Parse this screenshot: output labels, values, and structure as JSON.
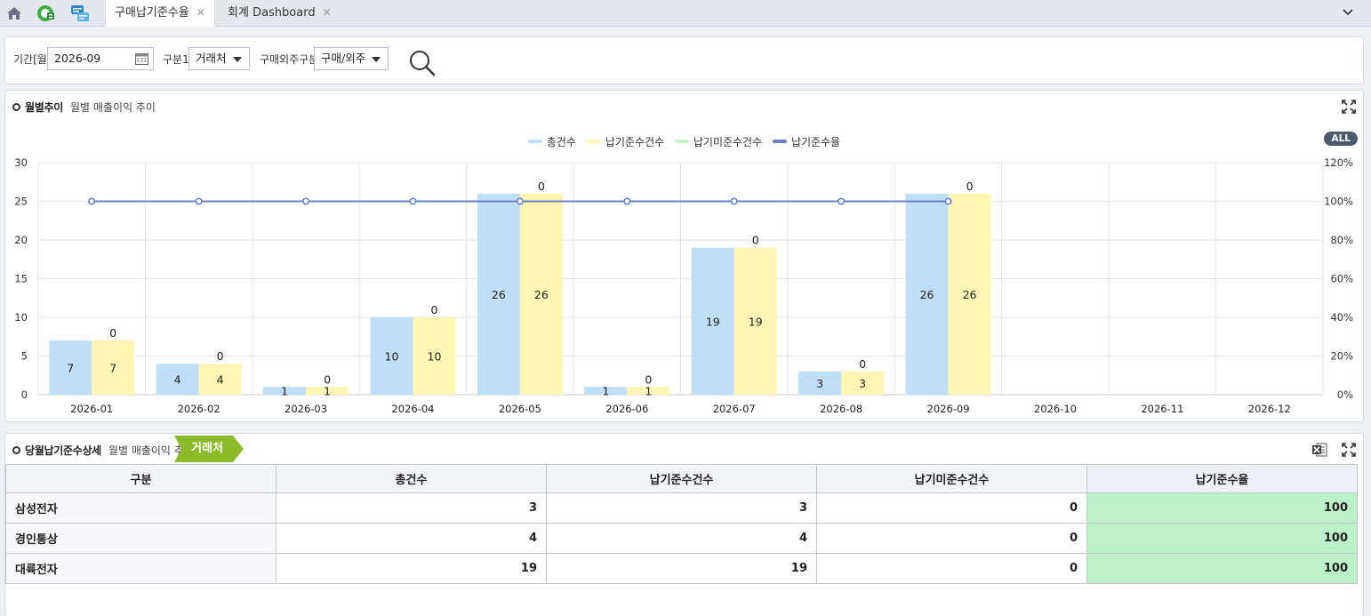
{
  "topbar": {
    "tabs": [
      {
        "label": "구매납기준수율",
        "close": "✕"
      },
      {
        "label": "회계 Dashboard",
        "close": "✕"
      }
    ]
  },
  "filters": {
    "period_label": "기간[월]",
    "period_value": "2026-09",
    "group1_label": "구분1",
    "group1_value": "거래처",
    "type_label": "구매외주구분",
    "type_value": "구매/외주"
  },
  "chart_panel": {
    "title": "월별추이",
    "subtitle": "월별 매출이익 추이",
    "all_label": "ALL"
  },
  "colors": {
    "total": "#bfdff9",
    "ontime": "#fff6b3",
    "late": "#c8f0c8",
    "rate": "#6b80c7",
    "chip": "#8dbb2c"
  },
  "chart_data": {
    "type": "bar",
    "categories": [
      "2026-01",
      "2026-02",
      "2026-03",
      "2026-04",
      "2026-05",
      "2026-06",
      "2026-07",
      "2026-08",
      "2026-09",
      "2026-10",
      "2026-11",
      "2026-12"
    ],
    "series": [
      {
        "name": "총건수",
        "values": [
          7,
          4,
          1,
          10,
          26,
          1,
          19,
          3,
          26,
          null,
          null,
          null
        ]
      },
      {
        "name": "납기준수건수",
        "values": [
          7,
          4,
          1,
          10,
          26,
          1,
          19,
          3,
          26,
          null,
          null,
          null
        ]
      },
      {
        "name": "납기미준수건수",
        "values": [
          0,
          0,
          0,
          0,
          0,
          0,
          0,
          0,
          0,
          null,
          null,
          null
        ]
      },
      {
        "name": "납기준수율",
        "values": [
          100,
          100,
          100,
          100,
          100,
          100,
          100,
          100,
          100,
          null,
          null,
          null
        ]
      }
    ],
    "ylim": [
      0,
      30
    ],
    "yticks": [
      "0",
      "5",
      "10",
      "15",
      "20",
      "25",
      "30"
    ],
    "y2lim": [
      0,
      120
    ],
    "y2ticks": [
      "0%",
      "20%",
      "40%",
      "60%",
      "80%",
      "100%",
      "120%"
    ],
    "grid": true,
    "legend": "top-center"
  },
  "table_panel": {
    "title": "당월납기준수상세",
    "subtitle": "월별 매출이익 추이",
    "chip_label": "거래처",
    "headers": [
      "구분",
      "총건수",
      "납기준수건수",
      "납기미준수건수",
      "납기준수율"
    ],
    "rows": [
      {
        "name": "삼성전자",
        "total": "3",
        "ontime": "3",
        "late": "0",
        "rate": "100"
      },
      {
        "name": "경인통상",
        "total": "4",
        "ontime": "4",
        "late": "0",
        "rate": "100"
      },
      {
        "name": "대륙전자",
        "total": "19",
        "ontime": "19",
        "late": "0",
        "rate": "100"
      }
    ]
  }
}
